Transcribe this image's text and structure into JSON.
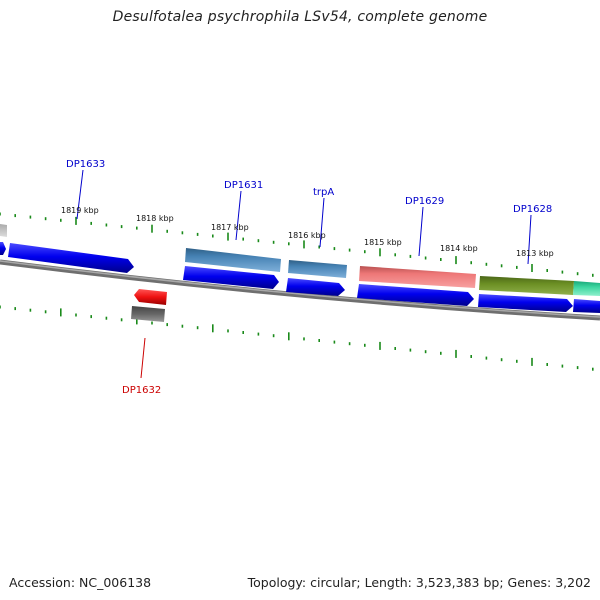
{
  "title": "Desulfotalea psychrophila LSv54, complete genome",
  "footer": {
    "accession": "Accession: NC_006138",
    "topology": "Topology: circular; Length: 3,523,383 bp; Genes: 3,202"
  },
  "colors": {
    "backbone": "#8a8a8a",
    "tick": "#1a8a1a",
    "forward_cds": "#0000ee",
    "steelblue": "#4682b4",
    "salmon": "#ee7777",
    "olive": "#6b8e23",
    "aquamarine": "#3cd6a0",
    "red": "#ee1111",
    "gray": "#666666",
    "label_blue": "#0000cc",
    "label_red": "#cc0000"
  },
  "kbp_labels": [
    {
      "text": "1819 kbp"
    },
    {
      "text": "1818 kbp"
    },
    {
      "text": "1817 kbp"
    },
    {
      "text": "1816 kbp"
    },
    {
      "text": "1815 kbp"
    },
    {
      "text": "1814 kbp"
    },
    {
      "text": "1813 kbp"
    }
  ],
  "gene_labels": [
    {
      "text": "DP1633",
      "color": "label_blue"
    },
    {
      "text": "DP1631",
      "color": "label_blue"
    },
    {
      "text": "trpA",
      "color": "label_blue"
    },
    {
      "text": "DP1629",
      "color": "label_blue"
    },
    {
      "text": "DP1628",
      "color": "label_blue"
    },
    {
      "text": "DP1632",
      "color": "label_red"
    }
  ]
}
